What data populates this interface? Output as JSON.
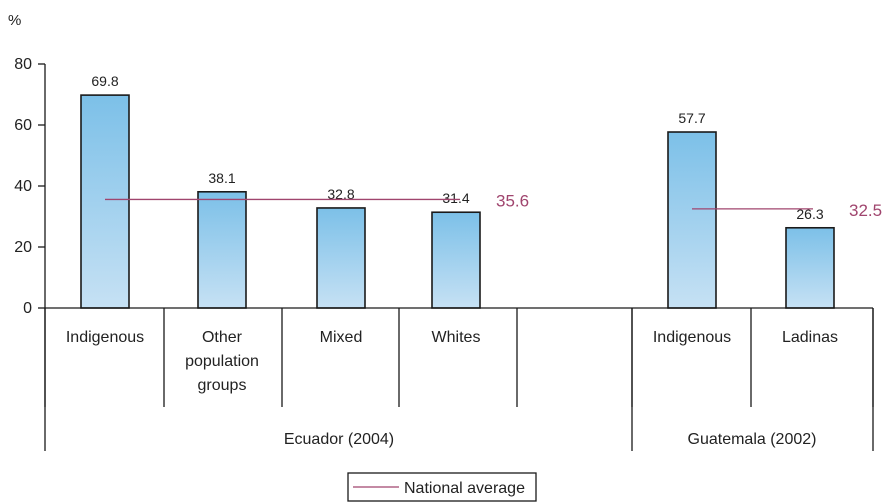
{
  "chart_data": {
    "type": "bar",
    "y_unit_label": "%",
    "ylim": [
      0,
      80
    ],
    "yticks": [
      0,
      20,
      40,
      60,
      80
    ],
    "grid": false,
    "bar_color_top": "#7cc0e8",
    "bar_color_bottom": "#c6e1f4",
    "bar_stroke": "#1a1a1a",
    "average_color": "#a0456e",
    "groups": [
      {
        "label": "Ecuador (2004)",
        "categories": [
          {
            "label_lines": [
              "Indigenous"
            ],
            "value": 69.8,
            "value_label": "69.8"
          },
          {
            "label_lines": [
              "Other",
              "population",
              "groups"
            ],
            "value": 38.1,
            "value_label": "38.1"
          },
          {
            "label_lines": [
              "Mixed"
            ],
            "value": 32.8,
            "value_label": "32.8"
          },
          {
            "label_lines": [
              "Whites"
            ],
            "value": 31.4,
            "value_label": "31.4"
          }
        ],
        "national_average": 35.6,
        "national_average_label": "35.6"
      },
      {
        "label": "Guatemala (2002)",
        "categories": [
          {
            "label_lines": [
              "Indigenous"
            ],
            "value": 57.7,
            "value_label": "57.7"
          },
          {
            "label_lines": [
              "Ladinas"
            ],
            "value": 26.3,
            "value_label": "26.3"
          }
        ],
        "national_average": 32.5,
        "national_average_label": "32.5"
      }
    ],
    "legend": {
      "entries": [
        {
          "name": "National average",
          "kind": "line"
        }
      ],
      "position": "bottom-center"
    }
  }
}
